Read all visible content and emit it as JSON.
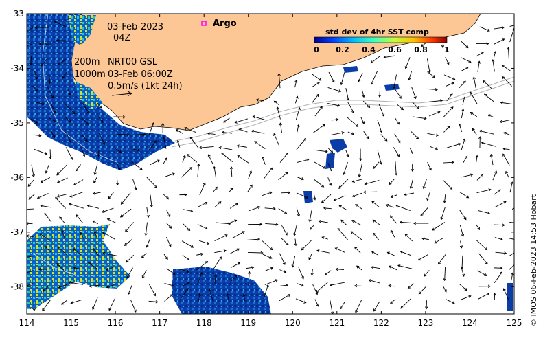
{
  "map": {
    "date_line": "03-Feb-2023",
    "time_line": "04Z",
    "contour_label_1": "200m",
    "contour_label_2": "1000m",
    "current_source": "NRT00 GSL",
    "current_time": "03-Feb 06:00Z",
    "scale_label": "0.5m/s (1kt 24h)",
    "argo_label": "Argo",
    "credit": "© IMOS 06-Feb-2023 14:53 Hobart"
  },
  "colorbar": {
    "title": "std dev of 4hr SST comp",
    "ticks": [
      "0",
      "0.2",
      "0.4",
      "0.6",
      "0.8",
      "1"
    ],
    "colors": [
      "#00008f",
      "#0040ff",
      "#00c0ff",
      "#40ffbf",
      "#bfff40",
      "#ffc000",
      "#ff4000",
      "#8f0000"
    ]
  },
  "axes": {
    "x_ticks": [
      "114",
      "115",
      "116",
      "117",
      "118",
      "119",
      "120",
      "121",
      "122",
      "123",
      "124",
      "125"
    ],
    "y_ticks": [
      "-33",
      "-34",
      "-35",
      "-36",
      "-37",
      "-38"
    ],
    "xlim": [
      114,
      125
    ],
    "ylim": [
      -38.5,
      -33
    ]
  },
  "colors": {
    "land": "#fdc795",
    "ocean_sst": "#0a3da8",
    "argo_marker": "#ff00ff"
  }
}
